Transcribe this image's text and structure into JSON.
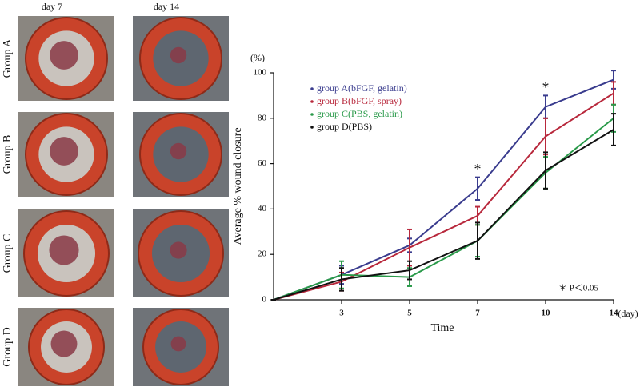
{
  "photos": {
    "columns": [
      "day 7",
      "day 14"
    ],
    "rows": [
      "Group A",
      "Group B",
      "Group C",
      "Group D"
    ]
  },
  "chart_data": {
    "type": "line",
    "categories": [
      null,
      "3",
      "5",
      "7",
      "10",
      "14"
    ],
    "series": [
      {
        "name": "group A(bFGF, gelatin)",
        "color": "#3a3c8e",
        "values": [
          0,
          11,
          24,
          49,
          85,
          97
        ],
        "errors": [
          0,
          4,
          3,
          5,
          5,
          4
        ]
      },
      {
        "name": "group B(bFGF, spray)",
        "color": "#b8283c",
        "values": [
          0,
          8,
          23,
          37,
          72,
          91
        ],
        "errors": [
          0,
          4,
          8,
          4,
          8,
          5
        ]
      },
      {
        "name": "group C(PBS, gelatin)",
        "color": "#2a9a4a",
        "values": [
          0,
          11,
          10,
          26,
          56,
          80
        ],
        "errors": [
          0,
          6,
          4,
          7,
          7,
          6
        ]
      },
      {
        "name": "group D(PBS)",
        "color": "#111111",
        "values": [
          0,
          9,
          13,
          26,
          57,
          75
        ],
        "errors": [
          0,
          5,
          4,
          8,
          8,
          7
        ]
      }
    ],
    "ylim": [
      0,
      100
    ],
    "yticks": [
      0,
      20,
      40,
      60,
      80,
      100
    ],
    "y_unit": "(%)",
    "x_unit": "(day)",
    "ylabel": "Average % wound closure",
    "xlabel": "Time",
    "annotations": [
      "*",
      "*",
      "＊ P＜0.05"
    ]
  }
}
